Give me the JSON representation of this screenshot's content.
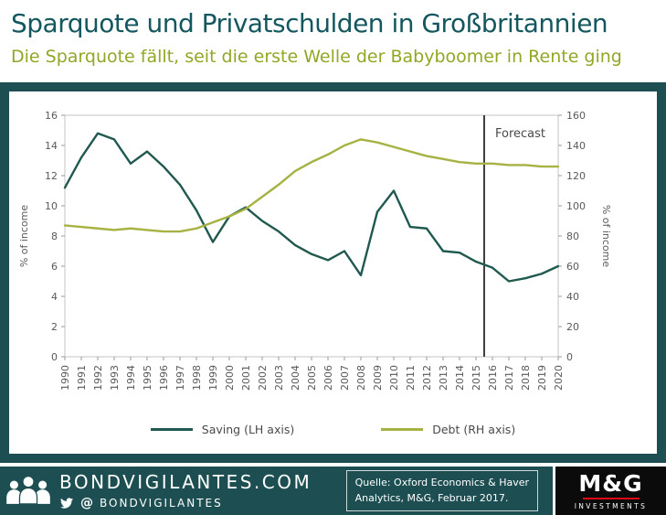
{
  "header": {
    "title": "Sparquote und Privatschulden in Großbritannien",
    "subtitle": "Die Sparquote fällt, seit die erste Welle der Babyboomer in Rente ging"
  },
  "chart_data": {
    "type": "line",
    "x": [
      1990,
      1991,
      1992,
      1993,
      1994,
      1995,
      1996,
      1997,
      1998,
      1999,
      2000,
      2001,
      2002,
      2003,
      2004,
      2005,
      2006,
      2007,
      2008,
      2009,
      2010,
      2011,
      2012,
      2013,
      2014,
      2015,
      2016,
      2017,
      2018,
      2019,
      2020
    ],
    "series": [
      {
        "name": "Saving (LH axis)",
        "axis": "left",
        "color": "#20594f",
        "values": [
          11.2,
          13.2,
          14.8,
          14.4,
          12.8,
          13.6,
          12.6,
          11.4,
          9.7,
          7.6,
          9.3,
          9.9,
          9.0,
          8.3,
          7.4,
          6.8,
          6.4,
          7.0,
          5.4,
          9.6,
          11.0,
          8.6,
          8.5,
          7.0,
          6.9,
          6.3,
          5.9,
          5.0,
          5.2,
          5.5,
          6.0
        ]
      },
      {
        "name": "Debt (RH axis)",
        "axis": "right",
        "color": "#a6b242",
        "values": [
          87,
          86,
          85,
          84,
          85,
          84,
          83,
          83,
          85,
          89,
          93,
          98,
          106,
          114,
          123,
          129,
          134,
          140,
          144,
          142,
          139,
          136,
          133,
          131,
          129,
          128,
          128,
          127,
          127,
          126,
          126
        ]
      }
    ],
    "left_axis": {
      "label": "% of income",
      "min": 0,
      "max": 16,
      "step": 2
    },
    "right_axis": {
      "label": "% of income",
      "min": 0,
      "max": 160,
      "step": 20
    },
    "forecast": {
      "label": "Forecast",
      "position": 2015.5
    },
    "legend_position": "bottom",
    "grid": "off"
  },
  "footer": {
    "brand": "BONDVIGILANTES.COM",
    "twitter_at": "@",
    "twitter_handle": "BONDVIGILANTES",
    "source_line1": "Quelle: Oxford Economics & Haver",
    "source_line2": "Analytics, M&G, Februar 2017.",
    "mg_logo": "M&G",
    "mg_sub": "INVESTMENTS"
  },
  "colors": {
    "background_teal": "#1d4f52",
    "title_teal": "#14575f",
    "subtitle_olive": "#93a625",
    "saving_line": "#20594f",
    "debt_line": "#a6b242",
    "forecast_line": "#3f3f3f",
    "mg_red": "#e30613"
  }
}
